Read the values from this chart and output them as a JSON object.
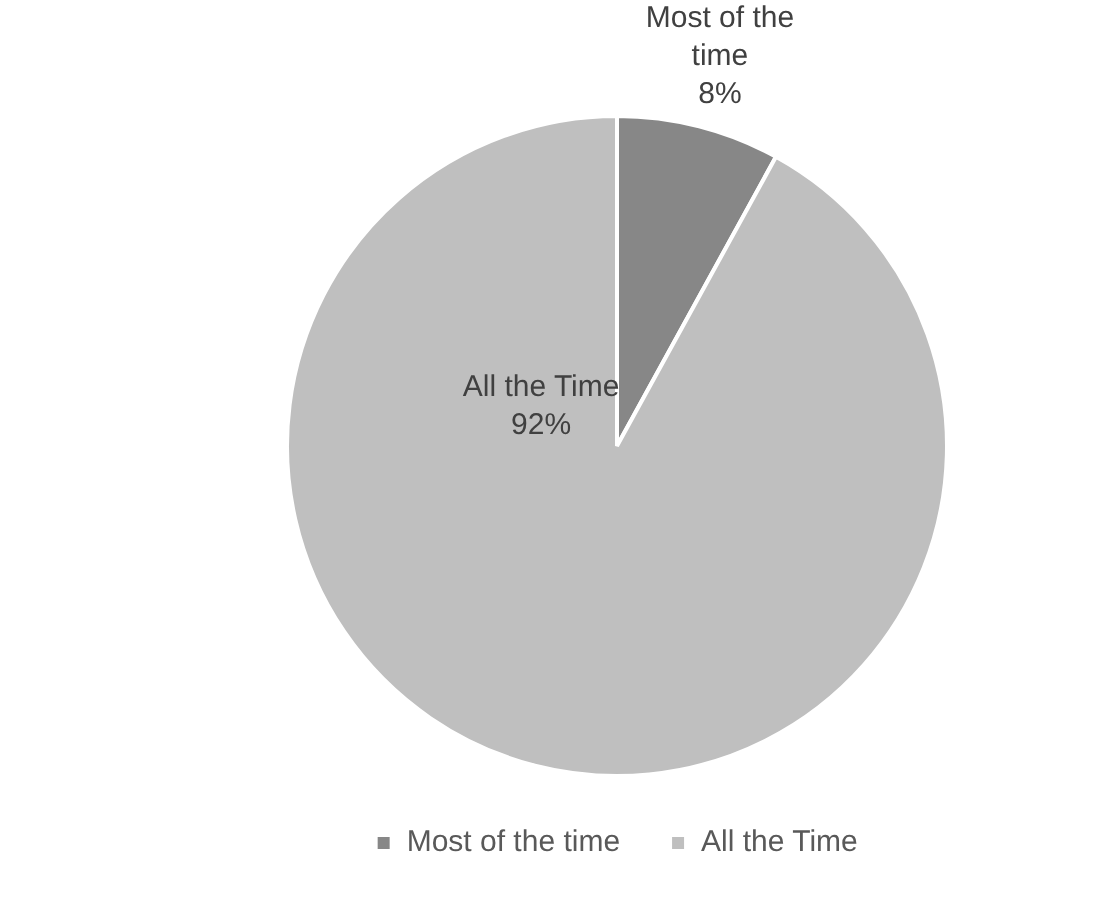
{
  "chart_data": {
    "type": "pie",
    "categories": [
      "Most of the time",
      "All the Time"
    ],
    "values": [
      8,
      92
    ],
    "colors": [
      "#878787",
      "#bfbfbf"
    ],
    "value_labels": [
      "8%",
      "92%"
    ],
    "legend": "bottom"
  }
}
